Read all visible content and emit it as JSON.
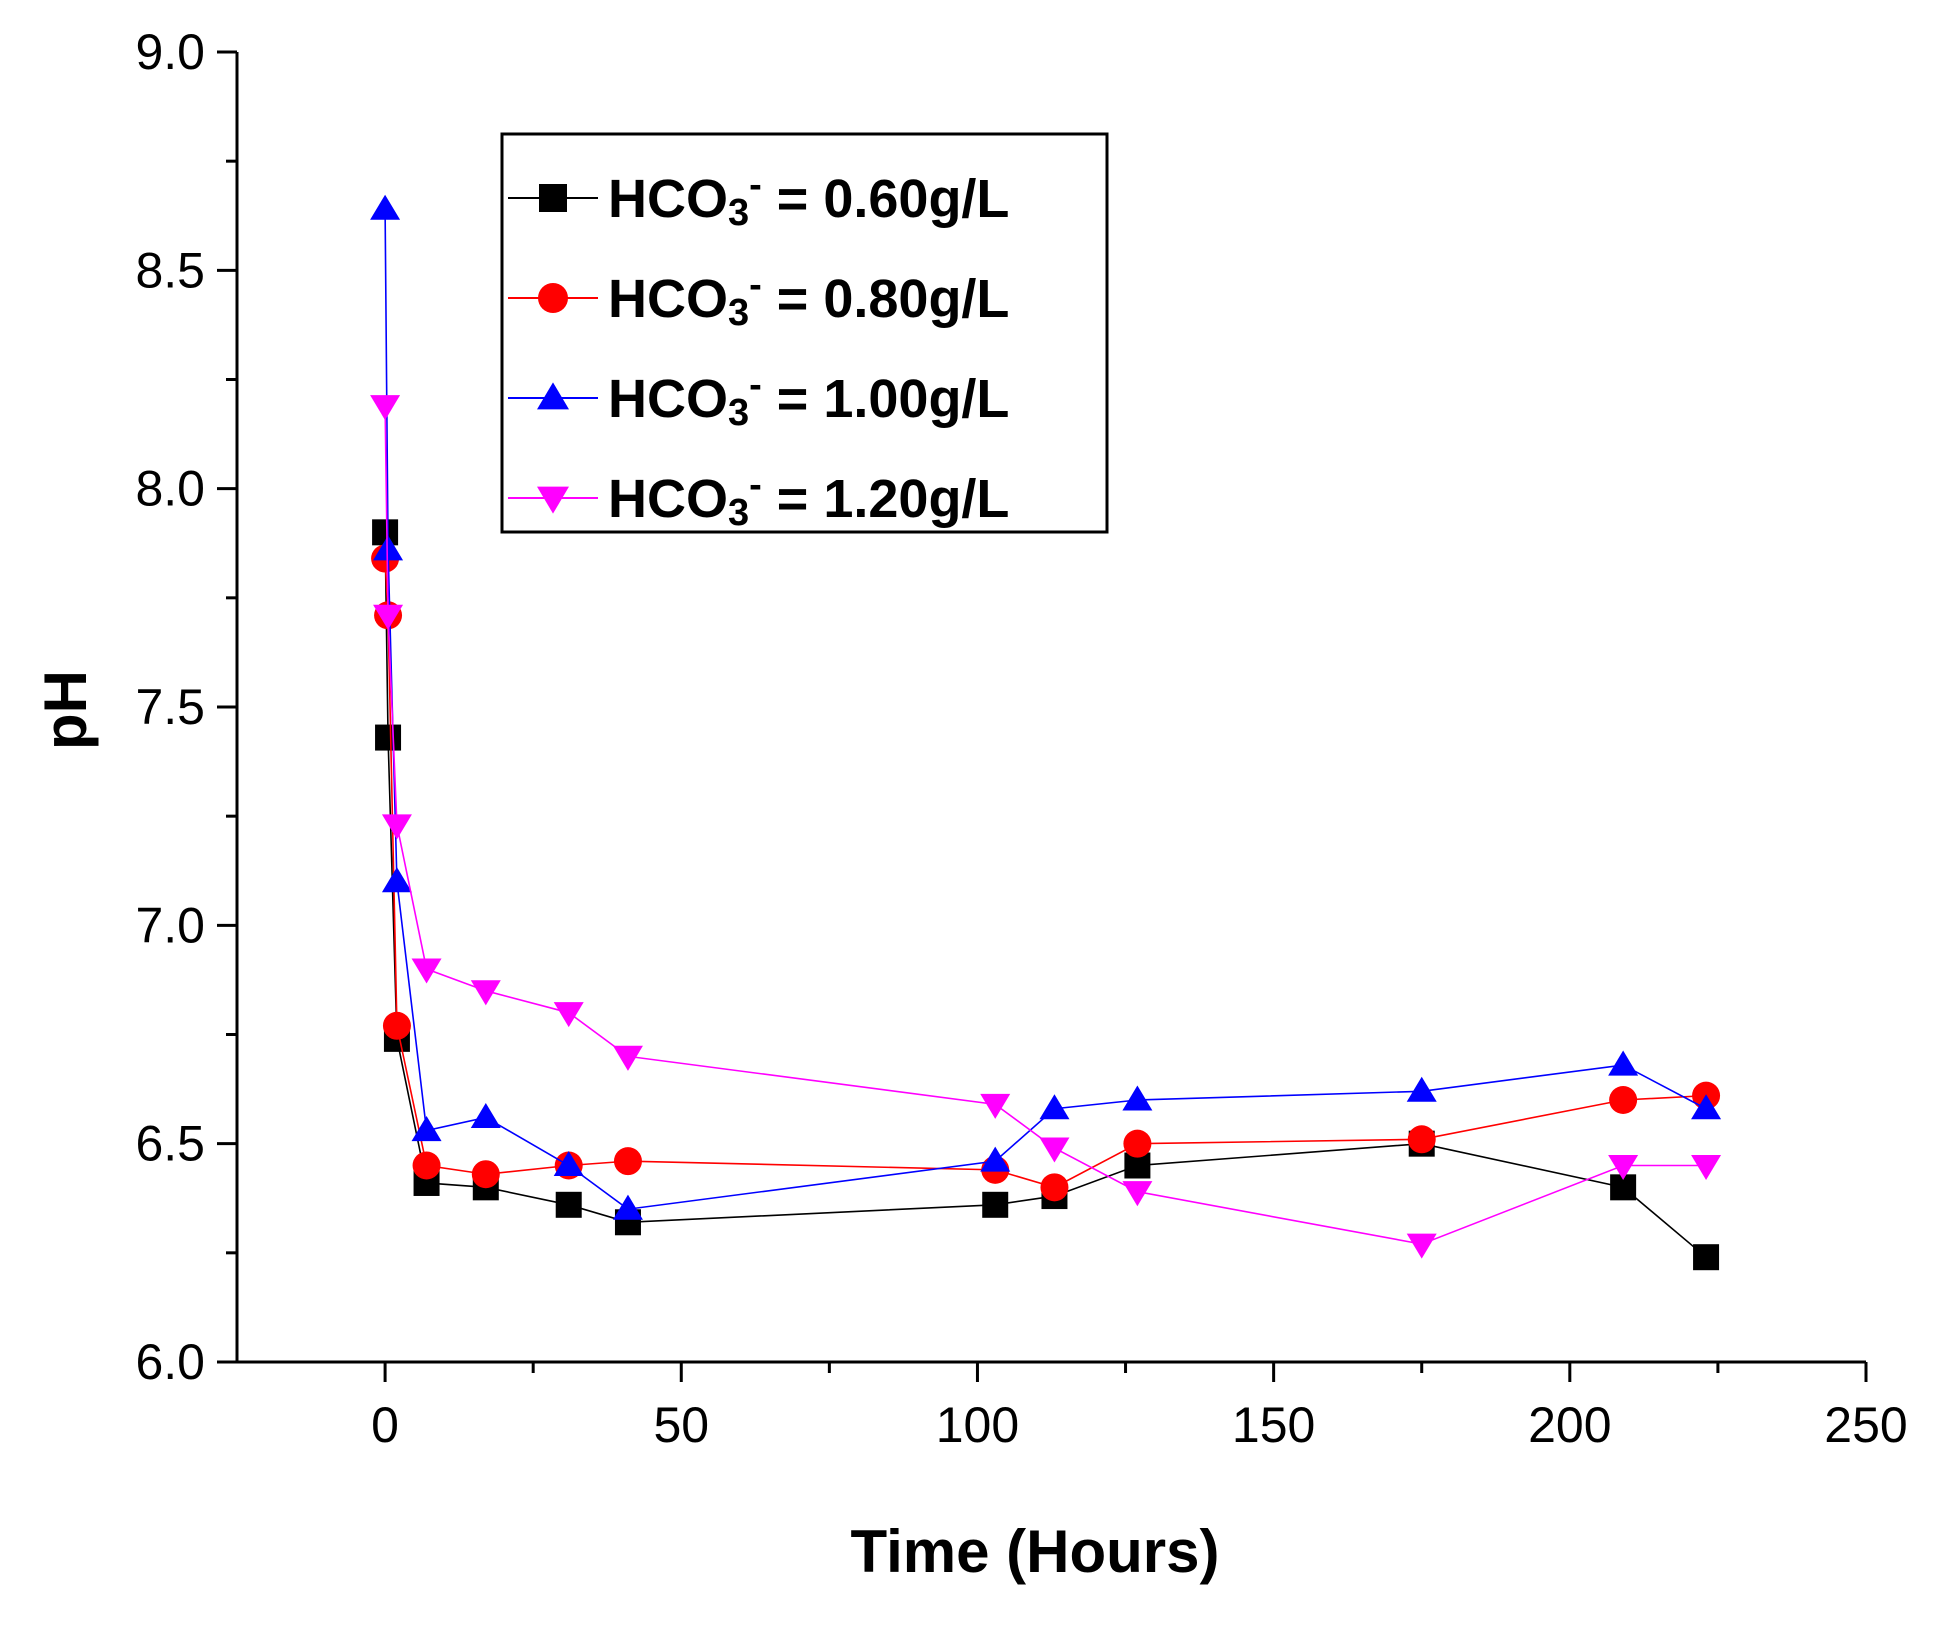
{
  "chart_data": {
    "type": "line",
    "xlabel": "Time (Hours)",
    "ylabel": "pH",
    "xlim": [
      -25,
      250
    ],
    "ylim": [
      6.0,
      9.0
    ],
    "x_ticks": [
      0,
      50,
      100,
      150,
      200,
      250
    ],
    "x_tick_labels": [
      "0",
      "50",
      "100",
      "150",
      "200",
      "250"
    ],
    "y_ticks": [
      6.0,
      6.5,
      7.0,
      7.5,
      8.0,
      8.5,
      9.0
    ],
    "y_tick_labels": [
      "6.0",
      "6.5",
      "7.0",
      "7.5",
      "8.0",
      "8.5",
      "9.0"
    ],
    "legend_position": "top-center",
    "series": [
      {
        "name": "HCO3- = 0.60g/L",
        "legend_main": "HCO",
        "legend_sub": "3",
        "legend_sup": "-",
        "legend_rest": " = 0.60g/L",
        "color": "#000000",
        "marker": "square",
        "x": [
          0,
          0.5,
          2,
          7,
          17,
          31,
          41,
          103,
          113,
          127,
          175,
          209,
          223
        ],
        "y": [
          7.9,
          7.43,
          6.74,
          6.41,
          6.4,
          6.36,
          6.32,
          6.36,
          6.38,
          6.45,
          6.5,
          6.4,
          6.24
        ]
      },
      {
        "name": "HCO3- = 0.80g/L",
        "legend_main": "HCO",
        "legend_sub": "3",
        "legend_sup": "-",
        "legend_rest": " = 0.80g/L",
        "color": "#ff0000",
        "marker": "circle",
        "x": [
          0,
          0.5,
          2,
          7,
          17,
          31,
          41,
          103,
          113,
          127,
          175,
          209,
          223
        ],
        "y": [
          7.84,
          7.71,
          6.77,
          6.45,
          6.43,
          6.45,
          6.46,
          6.44,
          6.4,
          6.5,
          6.51,
          6.6,
          6.61
        ]
      },
      {
        "name": "HCO3- = 1.00g/L",
        "legend_main": "HCO",
        "legend_sub": "3",
        "legend_sup": "-",
        "legend_rest": " = 1.00g/L",
        "color": "#0000ff",
        "marker": "triangle-up",
        "x": [
          0,
          0.5,
          2,
          7,
          17,
          31,
          41,
          103,
          113,
          127,
          175,
          209,
          223
        ],
        "y": [
          8.64,
          7.86,
          7.1,
          6.53,
          6.56,
          6.45,
          6.35,
          6.46,
          6.58,
          6.6,
          6.62,
          6.68,
          6.58
        ]
      },
      {
        "name": "HCO3- = 1.20g/L",
        "legend_main": "HCO",
        "legend_sub": "3",
        "legend_sup": "-",
        "legend_rest": " = 1.20g/L",
        "color": "#ff00ff",
        "marker": "triangle-down",
        "x": [
          0,
          0.5,
          2,
          7,
          17,
          31,
          41,
          103,
          113,
          127,
          175,
          209,
          223
        ],
        "y": [
          8.19,
          7.71,
          7.23,
          6.9,
          6.85,
          6.8,
          6.7,
          6.59,
          6.49,
          6.39,
          6.27,
          6.45,
          6.45
        ]
      }
    ]
  }
}
